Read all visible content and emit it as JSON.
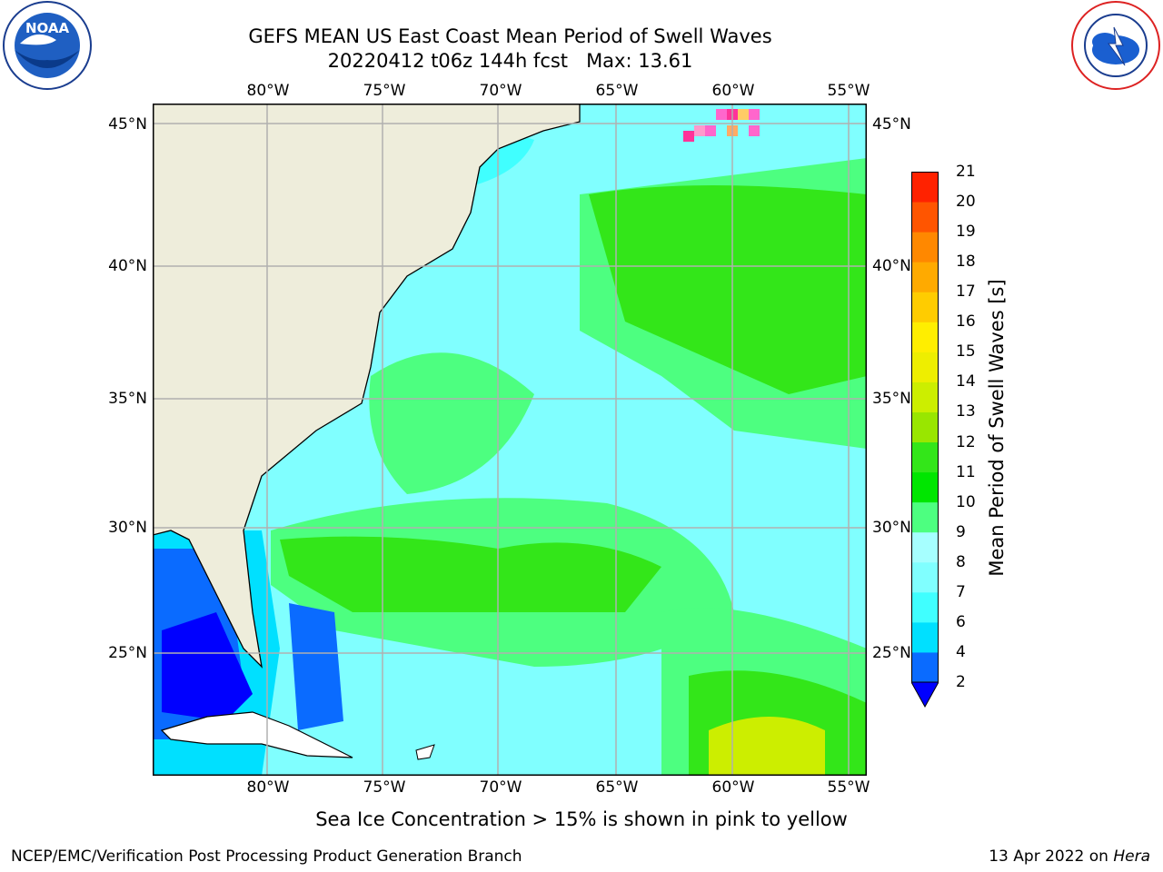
{
  "header": {
    "title_line1": "GEFS MEAN US East Coast Mean Period of Swell Waves",
    "title_line2": "20220412 t06z 144h fcst   Max: 13.61"
  },
  "logos": {
    "left": {
      "text": "NOAA",
      "ring_text": "NATIONAL OCEANIC AND ATMOSPHERIC ADMINISTRATION · U.S. DEPARTMENT OF COMMERCE",
      "icon": "noaa-logo"
    },
    "right": {
      "ring_text": "NATIONAL WEATHER SERVICE",
      "icon": "nws-logo"
    }
  },
  "map": {
    "lon_ticks": [
      "80°W",
      "75°W",
      "70°W",
      "65°W",
      "60°W",
      "55°W"
    ],
    "lat_ticks": [
      "45°N",
      "40°N",
      "35°N",
      "30°N",
      "25°N"
    ],
    "lon_range": [
      -85,
      -54
    ],
    "lat_range": [
      20.5,
      46
    ],
    "land_color": "#EEEDDB",
    "grid_color": "#B0B0B0"
  },
  "colorbar": {
    "title": "Mean Period of Swell Waves [s]",
    "levels": [
      2,
      4,
      6,
      7,
      8,
      9,
      10,
      11,
      12,
      13,
      14,
      15,
      16,
      17,
      18,
      19,
      20,
      21
    ],
    "labels": [
      "2",
      "4",
      "6",
      "7",
      "8",
      "9",
      "10",
      "11",
      "12",
      "13",
      "14",
      "15",
      "16",
      "17",
      "18",
      "19",
      "20",
      "21"
    ],
    "colors": [
      "#0A6BFF",
      "#00E0FF",
      "#40FFFF",
      "#80FFFF",
      "#A6FFFF",
      "#4DFF80",
      "#00E600",
      "#33E619",
      "#99E600",
      "#CCEE00",
      "#EEEE00",
      "#FFEE00",
      "#FFCC00",
      "#FFAA00",
      "#FF8800",
      "#FF5500",
      "#FF2200",
      "#FF0000"
    ],
    "extend_color": "#0000FF"
  },
  "footer": {
    "note": "Sea Ice Concentration > 15% is shown in pink to yellow",
    "left": "NCEP/EMC/Verification Post Processing Product Generation Branch",
    "right_date": "13 Apr 2022 on ",
    "right_host": "Hera"
  }
}
